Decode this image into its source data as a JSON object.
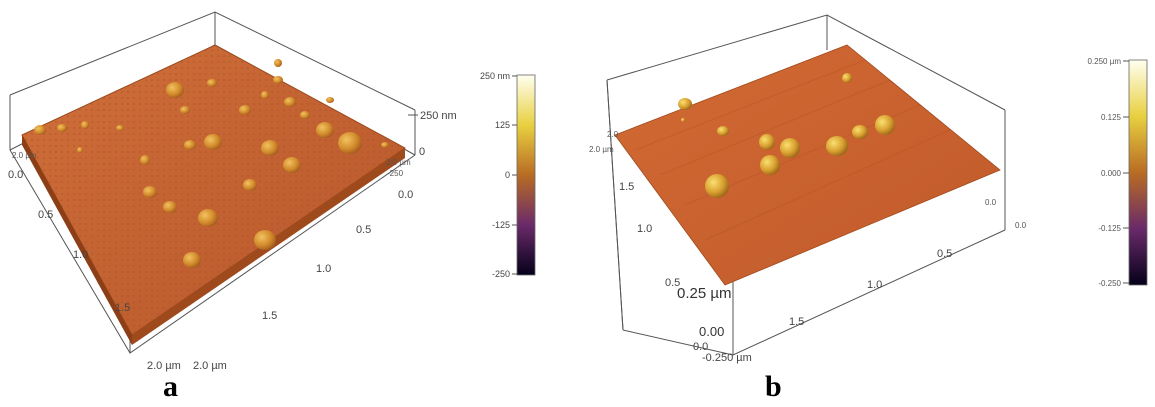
{
  "panels": [
    {
      "letter": "a",
      "z_top_label": "250 nm",
      "z_mid_label": "0",
      "z_bottom_label": "-250",
      "right_axis_start": "0.0",
      "right_axis_ticks": [
        "0.5",
        "1.0",
        "1.5"
      ],
      "right_axis_end": "2.0 µm",
      "left_axis_top": "2.0 µm",
      "left_axis_start": "0.0",
      "left_axis_ticks": [
        "0.5",
        "1.0",
        "1.5"
      ],
      "left_axis_end": "2.0 µm",
      "colorbar_ticks": [
        "250 nm",
        "125",
        "0",
        "-125",
        "-250"
      ]
    },
    {
      "letter": "b",
      "left_axis_top_a": "2.0",
      "left_axis_top_b": "2.0 µm",
      "left_axis_ticks": [
        "1.5",
        "1.0",
        "0.5"
      ],
      "z_top_label": "0.25 µm",
      "z_mid_label": "0.00",
      "z_bottom_label": "-0.250 µm",
      "right_axis_start_a": "0.0",
      "right_axis_start_b": "0.0",
      "right_axis_ticks": [
        "0.5",
        "1.0",
        "1.5"
      ],
      "front_corner_label": "0.0",
      "colorbar_ticks": [
        "0.250 µm",
        "0.125",
        "0.000",
        "-0.125",
        "-0.250"
      ]
    }
  ],
  "colors": {
    "surface": "#c9652e",
    "surface_dark": "#a8481c",
    "particle": "#d89a30",
    "box_line": "#555555",
    "colormap": [
      "#fffff0",
      "#f0e050",
      "#c8801c",
      "#8a4a2a",
      "#4a1a5a",
      "#0a0020"
    ]
  }
}
